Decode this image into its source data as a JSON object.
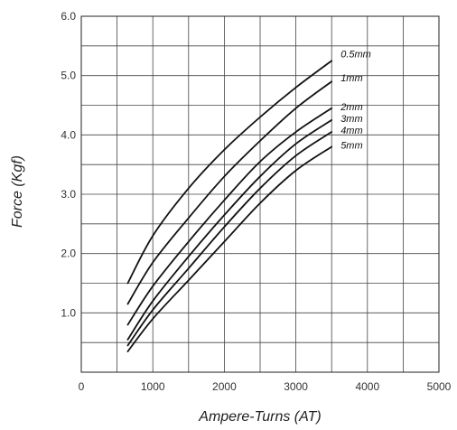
{
  "chart_data": {
    "type": "line",
    "xlabel": "Ampere-Turns (AT)",
    "ylabel": "Force (Kgf)",
    "xlim": [
      0,
      5000
    ],
    "ylim": [
      0,
      6.0
    ],
    "x_ticks": [
      0,
      1000,
      2000,
      3000,
      4000,
      5000
    ],
    "x_tick_labels": [
      "0",
      "1000",
      "2000",
      "3000",
      "4000",
      "5000"
    ],
    "y_ticks": [
      1.0,
      2.0,
      3.0,
      4.0,
      5.0,
      6.0
    ],
    "y_tick_labels": [
      "1.0",
      "2.0",
      "3.0",
      "4.0",
      "5.0",
      "6.0"
    ],
    "x_gridlines": [
      500,
      1000,
      1500,
      2000,
      2500,
      3000,
      3500,
      4000,
      4500
    ],
    "y_gridlines": [
      0.5,
      1.0,
      1.5,
      2.0,
      2.5,
      3.0,
      3.5,
      4.0,
      4.5,
      5.0,
      5.5
    ],
    "grid": true,
    "series": [
      {
        "name": "0.5mm",
        "x": [
          650,
          1000,
          1500,
          2000,
          2500,
          3000,
          3500
        ],
        "y": [
          1.5,
          2.3,
          3.1,
          3.75,
          4.3,
          4.8,
          5.25
        ]
      },
      {
        "name": "1mm",
        "x": [
          650,
          1000,
          1500,
          2000,
          2500,
          3000,
          3500
        ],
        "y": [
          1.15,
          1.85,
          2.6,
          3.3,
          3.9,
          4.45,
          4.9
        ]
      },
      {
        "name": "2mm",
        "x": [
          650,
          1000,
          1500,
          2000,
          2500,
          3000,
          3500
        ],
        "y": [
          0.8,
          1.45,
          2.2,
          2.9,
          3.55,
          4.05,
          4.45
        ]
      },
      {
        "name": "3mm",
        "x": [
          650,
          1000,
          1500,
          2000,
          2500,
          3000,
          3500
        ],
        "y": [
          0.55,
          1.2,
          1.95,
          2.65,
          3.3,
          3.85,
          4.25
        ]
      },
      {
        "name": "4mm",
        "x": [
          650,
          1000,
          1500,
          2000,
          2500,
          3000,
          3500
        ],
        "y": [
          0.45,
          1.05,
          1.75,
          2.45,
          3.1,
          3.65,
          4.05
        ]
      },
      {
        "name": "5mm",
        "x": [
          650,
          1000,
          1500,
          2000,
          2500,
          3000,
          3500
        ],
        "y": [
          0.35,
          0.9,
          1.55,
          2.2,
          2.85,
          3.4,
          3.8
        ]
      }
    ]
  }
}
